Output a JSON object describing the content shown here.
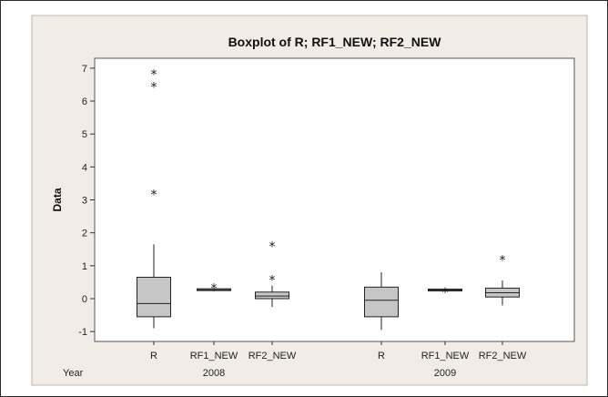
{
  "chart_data": {
    "type": "boxplot",
    "title": "Boxplot of R; RF1_NEW; RF2_NEW",
    "ylabel": "Data",
    "xlabel": "",
    "ylim": [
      -1.3,
      7.3
    ],
    "yticks": [
      -1,
      0,
      1,
      2,
      3,
      4,
      5,
      6,
      7
    ],
    "grid": false,
    "legend": "none",
    "group_row_label": "Year",
    "groups": [
      {
        "label": "2008",
        "boxes": [
          {
            "category": "R",
            "whisker_low": -0.9,
            "q1": -0.55,
            "median": -0.15,
            "q3": 0.65,
            "whisker_high": 1.65,
            "outliers": [
              3.2,
              6.45,
              6.85
            ]
          },
          {
            "category": "RF1_NEW",
            "whisker_low": 0.22,
            "q1": 0.25,
            "median": 0.27,
            "q3": 0.3,
            "whisker_high": 0.33,
            "outliers": [
              0.35
            ]
          },
          {
            "category": "RF2_NEW",
            "whisker_low": -0.25,
            "q1": 0.0,
            "median": 0.08,
            "q3": 0.2,
            "whisker_high": 0.4,
            "outliers": [
              0.6,
              1.62
            ]
          }
        ]
      },
      {
        "label": "2009",
        "boxes": [
          {
            "category": "R",
            "whisker_low": -0.95,
            "q1": -0.55,
            "median": -0.05,
            "q3": 0.35,
            "whisker_high": 0.8,
            "outliers": []
          },
          {
            "category": "RF1_NEW",
            "whisker_low": 0.22,
            "q1": 0.24,
            "median": 0.26,
            "q3": 0.29,
            "whisker_high": 0.31,
            "outliers": [
              0.22
            ]
          },
          {
            "category": "RF2_NEW",
            "whisker_low": -0.2,
            "q1": 0.05,
            "median": 0.18,
            "q3": 0.32,
            "whisker_high": 0.55,
            "outliers": [
              1.2
            ]
          }
        ]
      }
    ],
    "colors": {
      "frame_bg": "#f1ede6",
      "plot_bg": "#ffffff",
      "box_fill": "#c6c6c6",
      "ink": "#222222"
    }
  }
}
